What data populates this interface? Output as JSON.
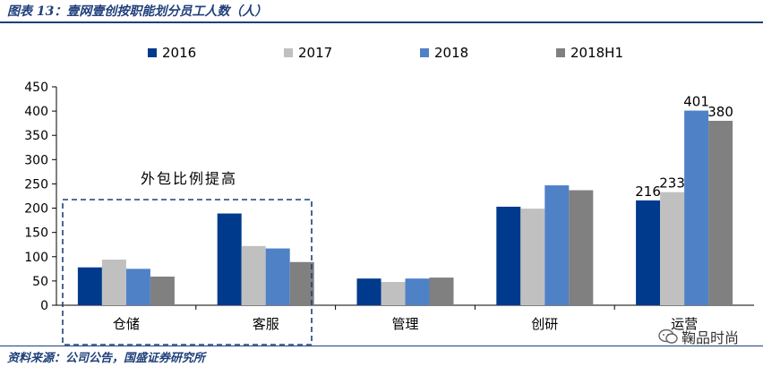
{
  "figure": {
    "title": "图表 13：壹网壹创按职能划分员工人数（人）",
    "source": "资料来源：公司公告，国盛证券研究所",
    "watermark": "鞠品时尚",
    "annotation": "外包比例提高"
  },
  "colors": {
    "title": "#1f3f7a",
    "annotation_box": "#1f3f7a"
  },
  "chart_data": {
    "type": "bar",
    "categories": [
      "仓储",
      "客服",
      "管理",
      "创研",
      "运营"
    ],
    "series": [
      {
        "name": "2016",
        "color": "#003a8c",
        "values": [
          78,
          189,
          55,
          203,
          216
        ]
      },
      {
        "name": "2017",
        "color": "#c0c0c0",
        "values": [
          94,
          122,
          48,
          199,
          233
        ]
      },
      {
        "name": "2018",
        "color": "#4f81c7",
        "values": [
          75,
          117,
          55,
          247,
          401
        ]
      },
      {
        "name": "2018H1",
        "color": "#808080",
        "values": [
          59,
          89,
          57,
          237,
          380
        ]
      }
    ],
    "data_labels": [
      {
        "category": "运营",
        "series": "2016",
        "text": "216"
      },
      {
        "category": "运营",
        "series": "2017",
        "text": "233"
      },
      {
        "category": "运营",
        "series": "2018",
        "text": "401"
      },
      {
        "category": "运营",
        "series": "2018H1",
        "text": "380"
      }
    ],
    "ylim": [
      0,
      450
    ],
    "yticks": [
      "0",
      "50",
      "100",
      "150",
      "200",
      "250",
      "300",
      "350",
      "400",
      "450"
    ],
    "ytick_values": [
      0,
      50,
      100,
      150,
      200,
      250,
      300,
      350,
      400,
      450
    ],
    "legend_position": "top",
    "grid": false
  }
}
